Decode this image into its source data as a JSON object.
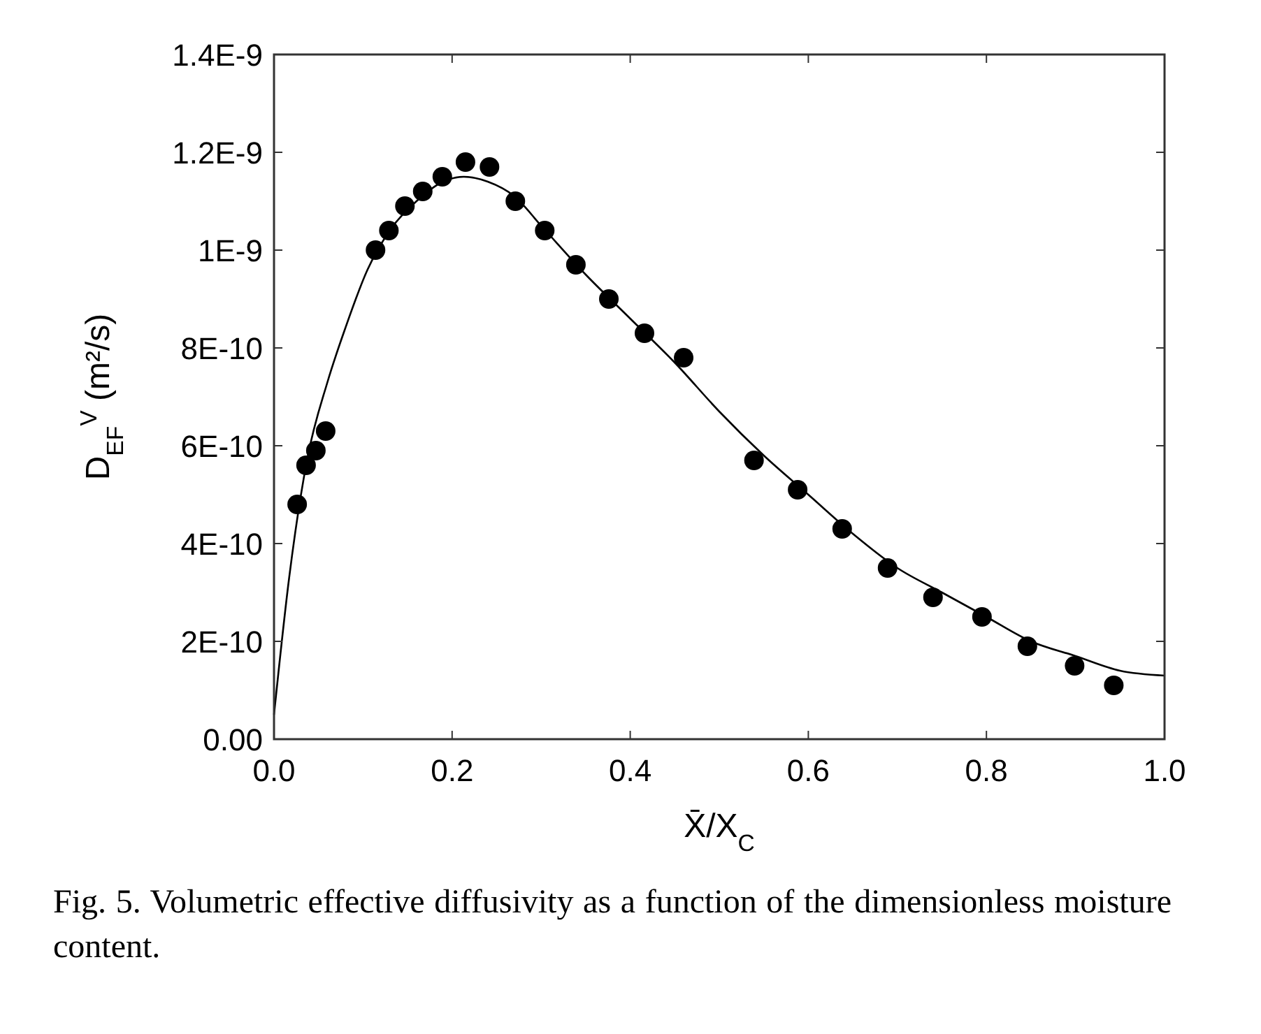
{
  "chart_data": {
    "type": "scatter",
    "xlabel": "X̄/X$_{C}$",
    "ylabel": "D$_{EF}$$^{V}$ (m²/s)",
    "annotations": [
      "Fig. 5.  Volumetric effective diffusivity as a function of the dimensionless moisture content."
    ],
    "xlim": [
      0,
      1
    ],
    "xticks": [
      {
        "value": 0,
        "label": "0.0"
      },
      0.2,
      0.4,
      0.6,
      0.8,
      {
        "value": 1,
        "label": "1.0"
      }
    ],
    "ylim": [
      0,
      1.4e-09
    ],
    "yticks": [
      {
        "value": 0,
        "label": "0.00"
      },
      {
        "value": 2e-10,
        "label": "2E-10"
      },
      {
        "value": 4e-10,
        "label": "4E-10"
      },
      {
        "value": 6e-10,
        "label": "6E-10"
      },
      {
        "value": 8e-10,
        "label": "8E-10"
      },
      {
        "value": 1e-09,
        "label": "1E-9"
      },
      {
        "value": 1.2e-09,
        "label": "1.2E-9"
      },
      {
        "value": 1.4e-09,
        "label": "1.4E-9"
      }
    ],
    "grid": false,
    "series": [
      {
        "color": "#000000",
        "marker": "circle",
        "x": [
          0.026,
          0.036,
          0.047,
          0.058,
          0.114,
          0.129,
          0.147,
          0.167,
          0.189,
          0.215,
          0.242,
          0.271,
          0.304,
          0.339,
          0.376,
          0.416,
          0.46,
          0.539,
          0.588,
          0.638,
          0.689,
          0.74,
          0.795,
          0.846,
          0.899,
          0.943
        ],
        "values": [
          4.8e-10,
          5.6e-10,
          5.9e-10,
          6.3e-10,
          1e-09,
          1.04e-09,
          1.09e-09,
          1.12e-09,
          1.15e-09,
          1.18e-09,
          1.17e-09,
          1.1e-09,
          1.04e-09,
          9.7e-10,
          9e-10,
          8.3e-10,
          7.8e-10,
          5.7e-10,
          5.1e-10,
          4.3e-10,
          3.5e-10,
          2.9e-10,
          2.5e-10,
          1.9e-10,
          1.5e-10,
          1.1e-10
        ]
      },
      {
        "type": "line",
        "color": "#000000",
        "marker": "none",
        "line_style": "solid",
        "x": [
          0,
          0.017,
          0.037,
          0.06,
          0.08,
          0.105,
          0.13,
          0.16,
          0.19,
          0.213,
          0.24,
          0.27,
          0.3,
          0.35,
          0.4,
          0.45,
          0.5,
          0.55,
          0.6,
          0.65,
          0.7,
          0.75,
          0.8,
          0.85,
          0.9,
          0.95,
          1
        ],
        "values": [
          5e-11,
          3.3e-10,
          5.7e-10,
          7.3e-10,
          8.4e-10,
          9.6e-10,
          1.04e-09,
          1.1e-09,
          1.14e-09,
          1.15e-09,
          1.14e-09,
          1.11e-09,
          1.05e-09,
          9.5e-10,
          8.6e-10,
          7.7e-10,
          6.7e-10,
          5.8e-10,
          5e-10,
          4.2e-10,
          3.5e-10,
          3e-10,
          2.5e-10,
          2e-10,
          1.7e-10,
          1.4e-10,
          1.3e-10
        ]
      }
    ]
  }
}
